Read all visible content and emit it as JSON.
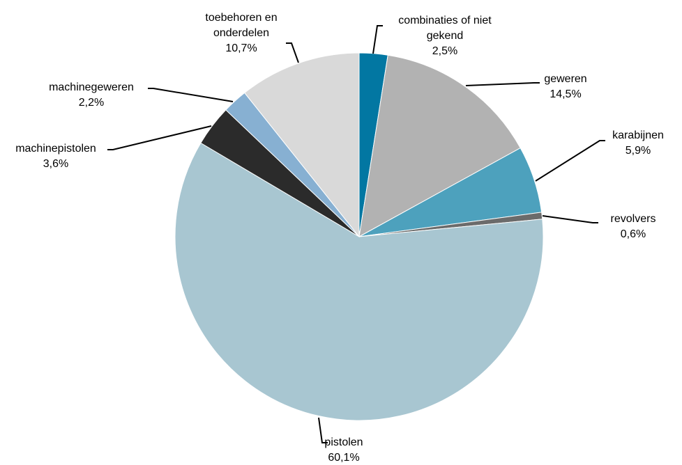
{
  "chart_data": {
    "type": "pie",
    "slices": [
      {
        "label": [
          "combinaties of niet",
          "gekend"
        ],
        "value_label": "2,5%",
        "value": 2.5,
        "color": "#0277a2"
      },
      {
        "label": [
          "geweren"
        ],
        "value_label": "14,5%",
        "value": 14.5,
        "color": "#b2b2b2"
      },
      {
        "label": [
          "karabijnen"
        ],
        "value_label": "5,9%",
        "value": 5.9,
        "color": "#4da1bd"
      },
      {
        "label": [
          "revolvers"
        ],
        "value_label": "0,6%",
        "value": 0.6,
        "color": "#6b6b6b"
      },
      {
        "label": [
          "pistolen"
        ],
        "value_label": "60,1%",
        "value": 60.1,
        "color": "#a8c6d1"
      },
      {
        "label": [
          "machinepistolen"
        ],
        "value_label": "3,6%",
        "value": 3.6,
        "color": "#2b2b2b"
      },
      {
        "label": [
          "machinegeweren"
        ],
        "value_label": "2,2%",
        "value": 2.2,
        "color": "#87b0d2"
      },
      {
        "label": [
          "toebehoren en",
          "onderdelen"
        ],
        "value_label": "10,7%",
        "value": 10.7,
        "color": "#d9d9d9"
      }
    ]
  }
}
